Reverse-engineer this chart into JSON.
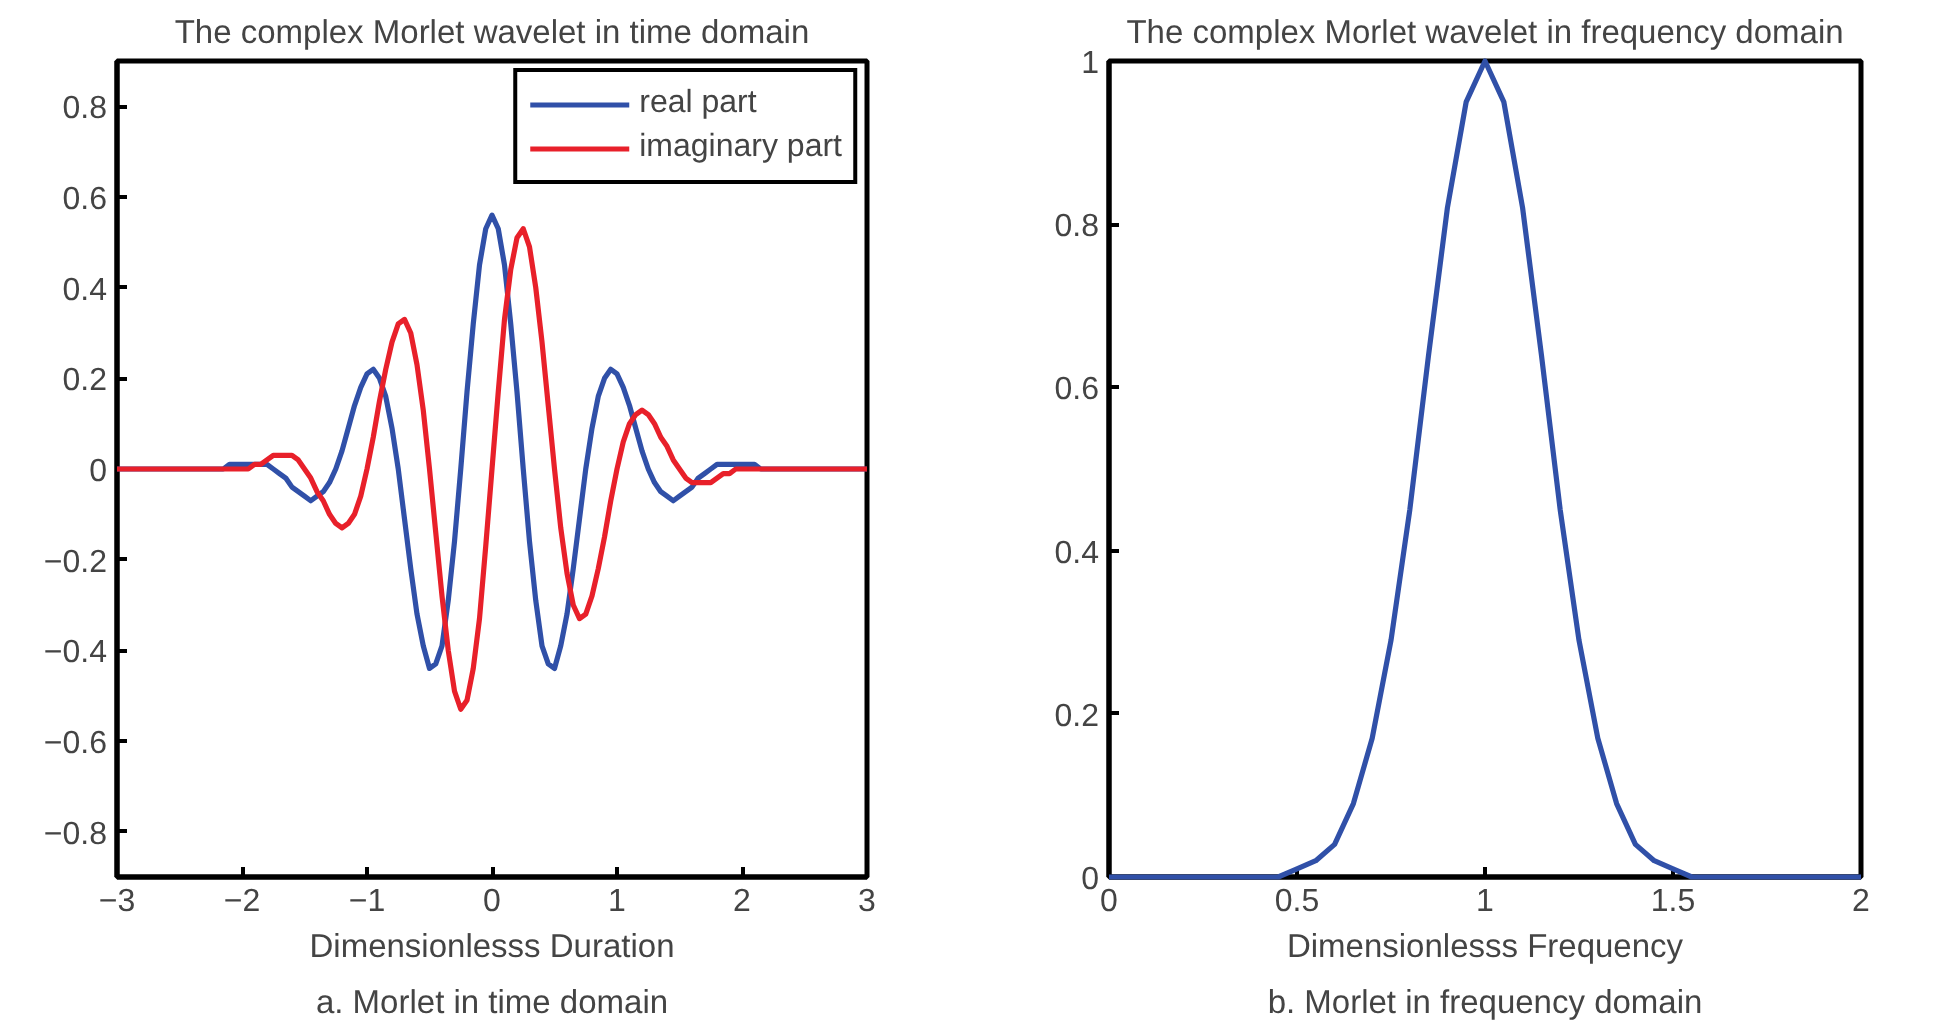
{
  "chart_data": [
    {
      "type": "line",
      "title": "The complex Morlet wavelet in time domain",
      "xlabel": "Dimensionlesss Duration",
      "annotations": [
        "a. Morlet in time domain"
      ],
      "x": [
        -3,
        -2.5,
        -2.2,
        -2.15,
        -2.1,
        -2.05,
        -2,
        -1.95,
        -1.9,
        -1.85,
        -1.8,
        -1.75,
        -1.7,
        -1.65,
        -1.6,
        -1.55,
        -1.5,
        -1.45,
        -1.4,
        -1.35,
        -1.3,
        -1.25,
        -1.2,
        -1.15,
        -1.1,
        -1.05,
        -1,
        -0.95,
        -0.9,
        -0.85,
        -0.8,
        -0.75,
        -0.7,
        -0.65,
        -0.6,
        -0.55,
        -0.5,
        -0.45,
        -0.4,
        -0.35,
        -0.3,
        -0.25,
        -0.2,
        -0.15,
        -0.1,
        -0.05,
        0,
        0.05,
        0.1,
        0.15,
        0.2,
        0.25,
        0.3,
        0.35,
        0.4,
        0.45,
        0.5,
        0.55,
        0.6,
        0.65,
        0.7,
        0.75,
        0.8,
        0.85,
        0.9,
        0.95,
        1,
        1.05,
        1.1,
        1.15,
        1.2,
        1.25,
        1.3,
        1.35,
        1.4,
        1.45,
        1.5,
        1.55,
        1.6,
        1.65,
        1.7,
        1.75,
        1.8,
        1.85,
        1.9,
        1.95,
        2,
        2.05,
        2.1,
        2.15,
        2.2,
        2.5,
        3
      ],
      "series": [
        {
          "name": "real part",
          "color": "#3050a8",
          "values": [
            0,
            0,
            0,
            0,
            0.01,
            0.01,
            0.01,
            0.01,
            0.01,
            0.01,
            0.01,
            0,
            -0.01,
            -0.02,
            -0.04,
            -0.05,
            -0.06,
            -0.07,
            -0.06,
            -0.05,
            -0.03,
            0,
            0.04,
            0.09,
            0.14,
            0.18,
            0.21,
            0.22,
            0.2,
            0.16,
            0.09,
            0,
            -0.11,
            -0.22,
            -0.32,
            -0.39,
            -0.44,
            -0.43,
            -0.39,
            -0.29,
            -0.16,
            0,
            0.17,
            0.32,
            0.45,
            0.53,
            0.56,
            0.53,
            0.45,
            0.32,
            0.17,
            0,
            -0.16,
            -0.29,
            -0.39,
            -0.43,
            -0.44,
            -0.39,
            -0.32,
            -0.22,
            -0.11,
            0,
            0.09,
            0.16,
            0.2,
            0.22,
            0.21,
            0.18,
            0.14,
            0.09,
            0.04,
            0,
            -0.03,
            -0.05,
            -0.06,
            -0.07,
            -0.06,
            -0.05,
            -0.04,
            -0.02,
            -0.01,
            0,
            0.01,
            0.01,
            0.01,
            0.01,
            0.01,
            0.01,
            0.01,
            0,
            0,
            0,
            0
          ]
        },
        {
          "name": "imaginary part",
          "color": "#e8202a",
          "values": [
            0,
            0,
            0,
            0,
            0,
            0,
            0,
            0,
            0.01,
            0.01,
            0.02,
            0.03,
            0.03,
            0.03,
            0.03,
            0.02,
            0,
            -0.02,
            -0.05,
            -0.07,
            -0.1,
            -0.12,
            -0.13,
            -0.12,
            -0.1,
            -0.06,
            0,
            0.07,
            0.15,
            0.22,
            0.28,
            0.32,
            0.33,
            0.3,
            0.23,
            0.13,
            0,
            -0.14,
            -0.28,
            -0.4,
            -0.49,
            -0.53,
            -0.51,
            -0.44,
            -0.33,
            -0.17,
            0,
            0.17,
            0.33,
            0.44,
            0.51,
            0.53,
            0.49,
            0.4,
            0.28,
            0.14,
            0,
            -0.13,
            -0.23,
            -0.3,
            -0.33,
            -0.32,
            -0.28,
            -0.22,
            -0.15,
            -0.07,
            0,
            0.06,
            0.1,
            0.12,
            0.13,
            0.12,
            0.1,
            0.07,
            0.05,
            0.02,
            0,
            -0.02,
            -0.03,
            -0.03,
            -0.03,
            -0.03,
            -0.02,
            -0.01,
            -0.01,
            0,
            0,
            0,
            0,
            0,
            0,
            0,
            0
          ]
        }
      ],
      "xlim": [
        -3,
        3
      ],
      "ylim": [
        -0.9,
        0.9
      ],
      "xticks": [
        {
          "value": -3,
          "label": "−3"
        },
        {
          "value": -2,
          "label": "−2"
        },
        {
          "value": -1,
          "label": "−1"
        },
        0,
        1,
        2,
        3
      ],
      "yticks": [
        {
          "value": -0.8,
          "label": "−0.8"
        },
        {
          "value": -0.6,
          "label": "−0.6"
        },
        {
          "value": -0.4,
          "label": "−0.4"
        },
        {
          "value": -0.2,
          "label": "−0.2"
        },
        0,
        0.2,
        0.4,
        0.6,
        0.8
      ],
      "grid": false,
      "legend": "top right"
    },
    {
      "type": "line",
      "title": "The complex Morlet wavelet in frequency domain",
      "xlabel": "Dimensionlesss Frequency",
      "annotations": [
        "b. Morlet in frequency domain"
      ],
      "x": [
        0,
        0.4,
        0.45,
        0.5,
        0.55,
        0.6,
        0.65,
        0.7,
        0.75,
        0.8,
        0.85,
        0.9,
        0.95,
        1,
        1.05,
        1.1,
        1.15,
        1.2,
        1.25,
        1.3,
        1.35,
        1.4,
        1.45,
        1.5,
        1.55,
        1.6,
        2
      ],
      "series": [
        {
          "color": "#3050a8",
          "values": [
            0,
            0,
            0,
            0.01,
            0.02,
            0.04,
            0.09,
            0.17,
            0.29,
            0.45,
            0.64,
            0.82,
            0.95,
            1,
            0.95,
            0.82,
            0.64,
            0.45,
            0.29,
            0.17,
            0.09,
            0.04,
            0.02,
            0.01,
            0,
            0,
            0
          ]
        }
      ],
      "xlim": [
        0,
        2
      ],
      "ylim": [
        0,
        1
      ],
      "xticks": [
        0,
        0.5,
        1,
        1.5,
        2
      ],
      "yticks": [
        0,
        0.2,
        0.4,
        0.6,
        0.8,
        1
      ],
      "grid": false
    }
  ]
}
